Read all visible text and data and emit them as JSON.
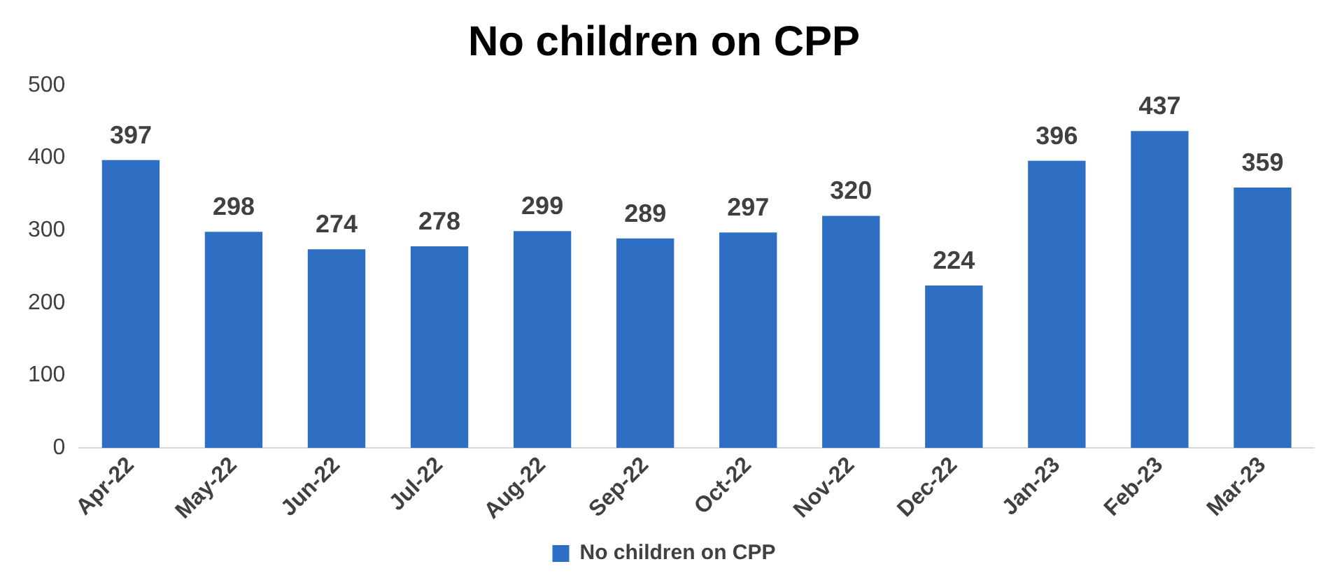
{
  "chart_data": {
    "type": "bar",
    "title": "No children on CPP",
    "categories": [
      "Apr-22",
      "May-22",
      "Jun-22",
      "Jul-22",
      "Aug-22",
      "Sep-22",
      "Oct-22",
      "Nov-22",
      "Dec-22",
      "Jan-23",
      "Feb-23",
      "Mar-23"
    ],
    "series": [
      {
        "name": "No children on CPP",
        "color": "#2e6fc4",
        "values": [
          397,
          298,
          274,
          278,
          299,
          289,
          297,
          320,
          224,
          396,
          437,
          359
        ]
      }
    ],
    "ylim": [
      0,
      500
    ],
    "yticks": [
      0,
      100,
      200,
      300,
      400,
      500
    ],
    "grid": false,
    "legend": "bottom",
    "data_labels": true
  }
}
